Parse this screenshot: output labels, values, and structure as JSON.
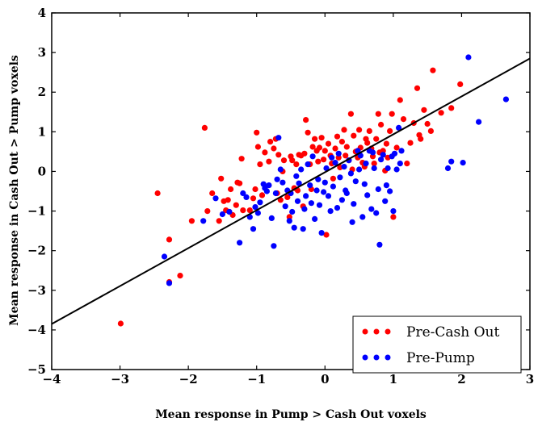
{
  "chart_data": {
    "type": "scatter",
    "title": "",
    "xlabel": "Mean response in Pump > Cash Out voxels",
    "ylabel": "Mean response in Cash Out > Pump voxels",
    "xlim": [
      -4,
      3
    ],
    "ylim": [
      -5,
      4
    ],
    "xticks": [
      "−4",
      "−3",
      "−2",
      "−1",
      "0",
      "1",
      "2",
      "3"
    ],
    "yticks": [
      "4",
      "3",
      "2",
      "1",
      "0",
      "−1",
      "−2",
      "−3",
      "−4",
      "−5"
    ],
    "grid": false,
    "legend_position": "lower-right",
    "fit_line": {
      "x": [
        -4,
        3
      ],
      "y": [
        -3.85,
        2.85
      ],
      "color": "#000000"
    },
    "series": [
      {
        "name": "Pre-Cash Out",
        "color": "#ff0000",
        "points": [
          [
            -2.99,
            -3.84
          ],
          [
            -2.45,
            -0.55
          ],
          [
            -2.28,
            -1.72
          ],
          [
            -2.28,
            -2.79
          ],
          [
            -2.12,
            -2.63
          ],
          [
            -1.76,
            1.1
          ],
          [
            -1.95,
            -1.25
          ],
          [
            -1.72,
            -1.0
          ],
          [
            -1.65,
            -0.55
          ],
          [
            -1.55,
            -1.25
          ],
          [
            -1.52,
            -0.18
          ],
          [
            -1.48,
            -0.75
          ],
          [
            -1.45,
            -0.98
          ],
          [
            -1.42,
            -0.72
          ],
          [
            -1.4,
            -1.02
          ],
          [
            -1.38,
            -0.45
          ],
          [
            -1.35,
            -1.1
          ],
          [
            -1.3,
            -0.85
          ],
          [
            -1.28,
            -0.28
          ],
          [
            -1.25,
            -0.3
          ],
          [
            -1.22,
            0.32
          ],
          [
            -1.2,
            -0.98
          ],
          [
            -1.1,
            -0.98
          ],
          [
            -1.05,
            -0.68
          ],
          [
            -1.02,
            -0.45
          ],
          [
            -1.0,
            0.98
          ],
          [
            -0.98,
            0.62
          ],
          [
            -0.95,
            0.18
          ],
          [
            -0.92,
            -0.6
          ],
          [
            -0.88,
            0.48
          ],
          [
            -0.82,
            0.25
          ],
          [
            -0.8,
            0.75
          ],
          [
            -0.75,
            0.58
          ],
          [
            -0.72,
            0.82
          ],
          [
            -0.7,
            -0.55
          ],
          [
            -0.68,
            0.42
          ],
          [
            -0.65,
            -0.72
          ],
          [
            -0.62,
            0.0
          ],
          [
            -0.6,
            0.28
          ],
          [
            -0.55,
            -0.65
          ],
          [
            -0.52,
            -1.15
          ],
          [
            -0.5,
            0.38
          ],
          [
            -0.48,
            0.28
          ],
          [
            -0.45,
            -0.42
          ],
          [
            -0.42,
            0.18
          ],
          [
            -0.4,
            -0.48
          ],
          [
            -0.38,
            0.42
          ],
          [
            -0.35,
            0.4
          ],
          [
            -0.32,
            -0.88
          ],
          [
            -0.3,
            0.45
          ],
          [
            -0.28,
            1.3
          ],
          [
            -0.25,
            0.98
          ],
          [
            -0.22,
            0.18
          ],
          [
            -0.2,
            -0.45
          ],
          [
            -0.18,
            0.62
          ],
          [
            -0.15,
            0.82
          ],
          [
            -0.12,
            0.52
          ],
          [
            -0.1,
            0.25
          ],
          [
            -0.08,
            0.6
          ],
          [
            -0.05,
            0.85
          ],
          [
            -0.02,
            0.3
          ],
          [
            0.0,
            0.52
          ],
          [
            0.02,
            -1.6
          ],
          [
            0.05,
            0.7
          ],
          [
            0.08,
            0.4
          ],
          [
            0.1,
            0.2
          ],
          [
            0.12,
            -0.18
          ],
          [
            0.15,
            0.58
          ],
          [
            0.18,
            0.88
          ],
          [
            0.2,
            0.35
          ],
          [
            0.22,
            0.1
          ],
          [
            0.25,
            0.75
          ],
          [
            0.28,
            1.05
          ],
          [
            0.3,
            0.4
          ],
          [
            0.32,
            0.62
          ],
          [
            0.35,
            0.28
          ],
          [
            0.38,
            1.45
          ],
          [
            0.4,
            0.05
          ],
          [
            0.42,
            0.9
          ],
          [
            0.45,
            0.5
          ],
          [
            0.48,
            0.35
          ],
          [
            0.5,
            1.05
          ],
          [
            0.52,
            0.6
          ],
          [
            0.55,
            0.22
          ],
          [
            0.58,
            0.12
          ],
          [
            0.6,
            0.82
          ],
          [
            0.62,
            0.72
          ],
          [
            0.65,
            1.02
          ],
          [
            0.68,
            0.58
          ],
          [
            0.7,
            0.38
          ],
          [
            0.72,
            0.2
          ],
          [
            0.75,
            0.82
          ],
          [
            0.78,
            1.45
          ],
          [
            0.8,
            0.48
          ],
          [
            0.82,
            1.18
          ],
          [
            0.85,
            0.52
          ],
          [
            0.88,
            0.02
          ],
          [
            0.9,
            0.7
          ],
          [
            0.92,
            0.35
          ],
          [
            0.95,
            1.02
          ],
          [
            0.98,
            1.45
          ],
          [
            1.0,
            -1.15
          ],
          [
            1.05,
            0.6
          ],
          [
            1.1,
            1.8
          ],
          [
            1.15,
            1.32
          ],
          [
            1.2,
            0.2
          ],
          [
            1.25,
            0.72
          ],
          [
            1.3,
            1.22
          ],
          [
            1.35,
            2.1
          ],
          [
            1.38,
            0.92
          ],
          [
            1.4,
            0.82
          ],
          [
            1.45,
            1.55
          ],
          [
            1.5,
            1.2
          ],
          [
            1.55,
            1.02
          ],
          [
            1.58,
            2.55
          ],
          [
            1.7,
            1.48
          ],
          [
            1.85,
            1.6
          ],
          [
            1.98,
            2.2
          ]
        ]
      },
      {
        "name": "Pre-Pump",
        "color": "#0000ff",
        "points": [
          [
            -2.35,
            -2.15
          ],
          [
            -2.28,
            -2.82
          ],
          [
            -1.78,
            -1.25
          ],
          [
            -1.6,
            -0.68
          ],
          [
            -1.5,
            -1.08
          ],
          [
            -1.4,
            -1.02
          ],
          [
            -1.25,
            -1.8
          ],
          [
            -1.2,
            -0.55
          ],
          [
            -1.15,
            -0.65
          ],
          [
            -1.1,
            -1.15
          ],
          [
            -1.05,
            -1.45
          ],
          [
            -1.02,
            -0.9
          ],
          [
            -0.98,
            -1.05
          ],
          [
            -0.95,
            -0.78
          ],
          [
            -0.9,
            -0.32
          ],
          [
            -0.88,
            -0.42
          ],
          [
            -0.85,
            -0.5
          ],
          [
            -0.82,
            -0.35
          ],
          [
            -0.78,
            -1.18
          ],
          [
            -0.75,
            -1.88
          ],
          [
            -0.72,
            -0.55
          ],
          [
            -0.7,
            -0.2
          ],
          [
            -0.68,
            0.85
          ],
          [
            -0.65,
            0.05
          ],
          [
            -0.62,
            -0.28
          ],
          [
            -0.58,
            -0.88
          ],
          [
            -0.55,
            -0.48
          ],
          [
            -0.52,
            -1.25
          ],
          [
            -0.5,
            -0.55
          ],
          [
            -0.48,
            -1.02
          ],
          [
            -0.45,
            -1.42
          ],
          [
            -0.42,
            -0.12
          ],
          [
            -0.4,
            -0.75
          ],
          [
            -0.38,
            -0.3
          ],
          [
            -0.35,
            0.05
          ],
          [
            -0.32,
            -1.45
          ],
          [
            -0.3,
            -0.95
          ],
          [
            -0.28,
            -0.62
          ],
          [
            -0.25,
            0.18
          ],
          [
            -0.22,
            -0.35
          ],
          [
            -0.2,
            -0.8
          ],
          [
            -0.18,
            0.38
          ],
          [
            -0.15,
            -1.2
          ],
          [
            -0.12,
            -0.48
          ],
          [
            -0.1,
            -0.2
          ],
          [
            -0.08,
            -0.85
          ],
          [
            -0.05,
            -1.55
          ],
          [
            -0.02,
            -0.52
          ],
          [
            0.0,
            -0.28
          ],
          [
            0.02,
            0.08
          ],
          [
            0.05,
            -0.62
          ],
          [
            0.08,
            -1.0
          ],
          [
            0.1,
            0.35
          ],
          [
            0.12,
            -0.38
          ],
          [
            0.15,
            0.22
          ],
          [
            0.18,
            -0.92
          ],
          [
            0.2,
            0.45
          ],
          [
            0.22,
            -0.15
          ],
          [
            0.25,
            -0.72
          ],
          [
            0.28,
            0.12
          ],
          [
            0.3,
            -0.48
          ],
          [
            0.32,
            -0.55
          ],
          [
            0.35,
            0.28
          ],
          [
            0.38,
            -0.05
          ],
          [
            0.4,
            -1.28
          ],
          [
            0.42,
            -0.82
          ],
          [
            0.45,
            -0.25
          ],
          [
            0.48,
            0.52
          ],
          [
            0.5,
            0.05
          ],
          [
            0.52,
            0.4
          ],
          [
            0.55,
            -1.15
          ],
          [
            0.58,
            -0.32
          ],
          [
            0.6,
            0.2
          ],
          [
            0.62,
            -0.6
          ],
          [
            0.65,
            0.52
          ],
          [
            0.68,
            -0.95
          ],
          [
            0.7,
            0.48
          ],
          [
            0.72,
            0.08
          ],
          [
            0.75,
            -1.05
          ],
          [
            0.78,
            -0.45
          ],
          [
            0.8,
            -1.85
          ],
          [
            0.82,
            0.3
          ],
          [
            0.85,
            0.42
          ],
          [
            0.88,
            -0.75
          ],
          [
            0.9,
            -0.35
          ],
          [
            0.92,
            0.08
          ],
          [
            0.95,
            -0.5
          ],
          [
            0.98,
            0.38
          ],
          [
            1.0,
            -1.0
          ],
          [
            1.02,
            0.45
          ],
          [
            1.05,
            0.05
          ],
          [
            1.08,
            1.1
          ],
          [
            1.1,
            0.2
          ],
          [
            1.12,
            0.52
          ],
          [
            1.8,
            0.08
          ],
          [
            1.85,
            0.25
          ],
          [
            2.02,
            0.22
          ],
          [
            2.1,
            2.88
          ],
          [
            2.25,
            1.25
          ],
          [
            2.65,
            1.82
          ]
        ]
      }
    ]
  }
}
